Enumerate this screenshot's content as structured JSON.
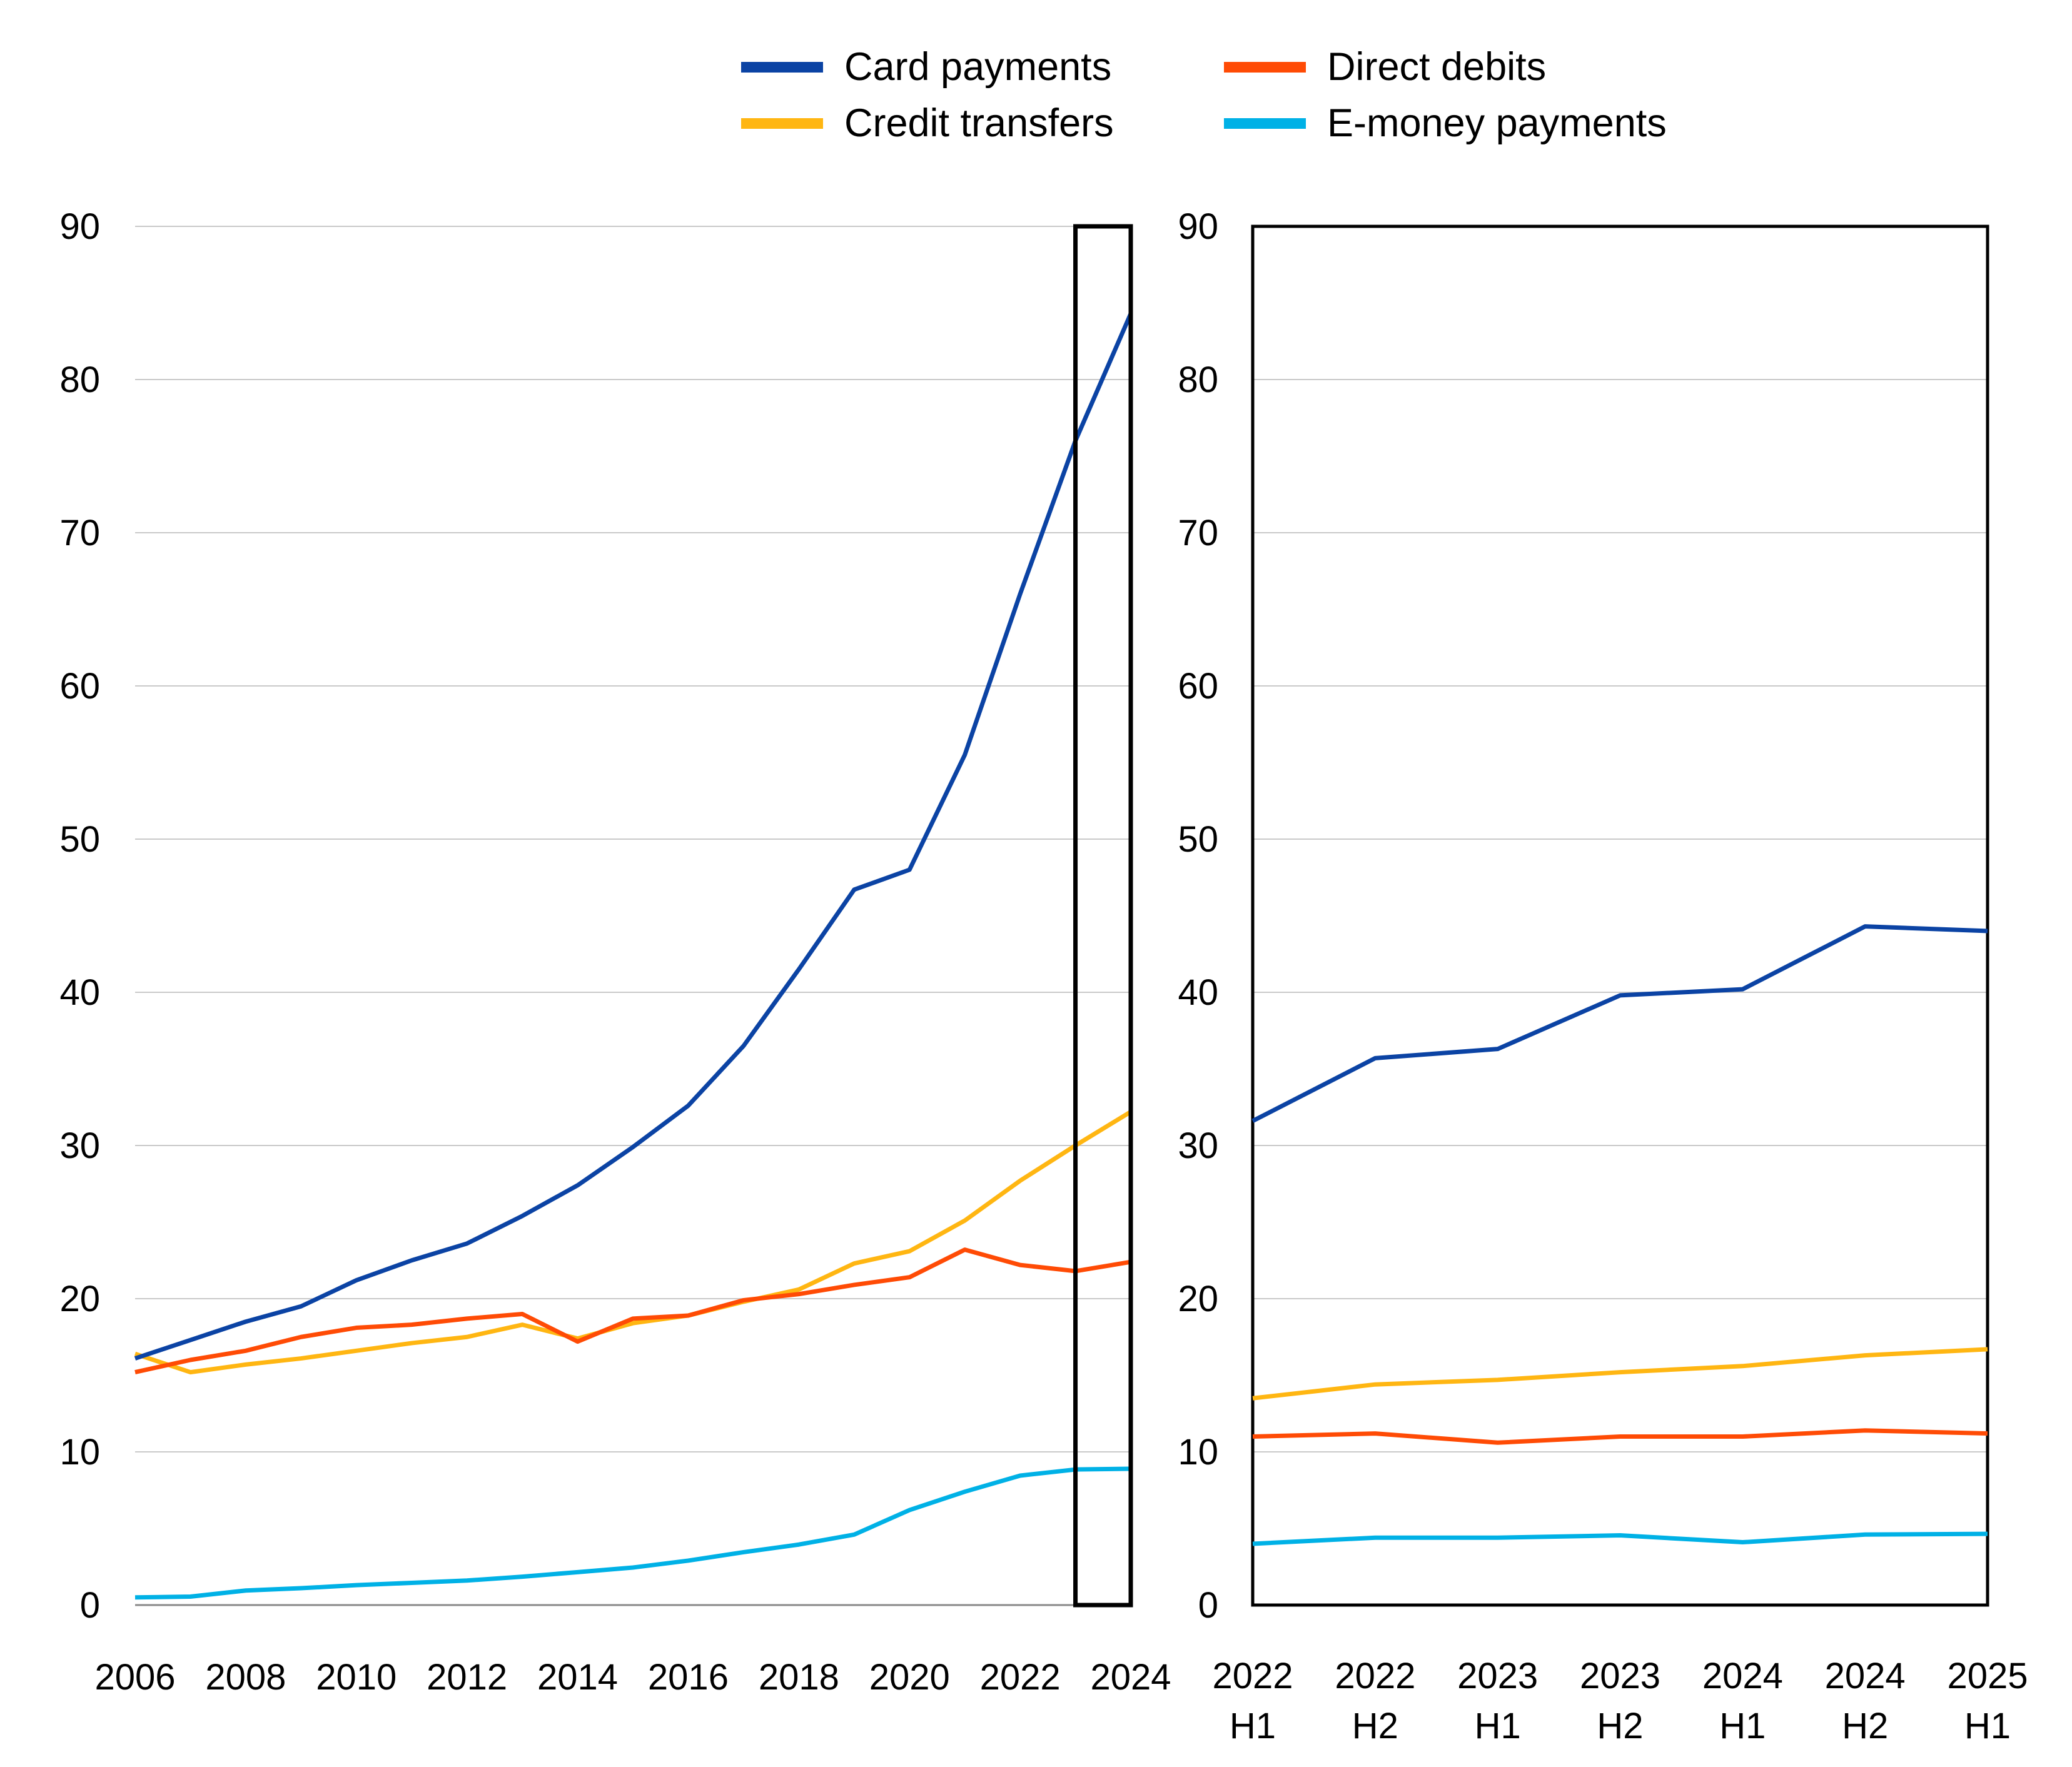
{
  "legend": {
    "items": [
      {
        "label": "Card payments",
        "color": "#0b43a4"
      },
      {
        "label": "Credit transfers",
        "color": "#ffb612"
      },
      {
        "label": "Direct debits",
        "color": "#ff4b05"
      },
      {
        "label": "E-money payments",
        "color": "#00b1e6"
      }
    ]
  },
  "chart_data": [
    {
      "id": "annual-panel",
      "type": "line",
      "title": "",
      "xlabel": "",
      "ylabel": "",
      "ylim": [
        0,
        90
      ],
      "y_ticks": [
        0,
        10,
        20,
        30,
        40,
        50,
        60,
        70,
        80,
        90
      ],
      "grid": true,
      "x": [
        2006,
        2007,
        2008,
        2009,
        2010,
        2011,
        2012,
        2013,
        2014,
        2015,
        2016,
        2017,
        2018,
        2019,
        2020,
        2021,
        2022,
        2023,
        2024
      ],
      "x_tick_labels": [
        "2006",
        "2008",
        "2010",
        "2012",
        "2014",
        "2016",
        "2018",
        "2020",
        "2022",
        "2024"
      ],
      "highlight_box": {
        "from": 2023,
        "to": 2024,
        "y_from": 0,
        "y_to": 90
      },
      "series": [
        {
          "name": "Card payments",
          "color": "#0b43a4",
          "values": [
            16.1,
            17.3,
            18.5,
            19.5,
            21.2,
            22.5,
            23.6,
            25.4,
            27.4,
            29.9,
            32.6,
            36.5,
            41.5,
            46.7,
            48.0,
            55.5,
            66.0,
            76.0,
            84.3
          ]
        },
        {
          "name": "Credit transfers",
          "color": "#ffb612",
          "values": [
            16.4,
            15.2,
            15.7,
            16.1,
            16.6,
            17.1,
            17.5,
            18.3,
            17.4,
            18.4,
            18.9,
            19.8,
            20.6,
            22.3,
            23.1,
            25.1,
            27.7,
            30.0,
            32.2
          ]
        },
        {
          "name": "Direct debits",
          "color": "#ff4b05",
          "values": [
            15.2,
            16.0,
            16.6,
            17.5,
            18.1,
            18.3,
            18.7,
            19.0,
            17.2,
            18.7,
            18.9,
            19.9,
            20.3,
            20.9,
            21.4,
            23.2,
            22.2,
            21.8,
            22.4
          ]
        },
        {
          "name": "E-money payments",
          "color": "#00b1e6",
          "values": [
            0.5,
            0.55,
            0.95,
            1.1,
            1.3,
            1.45,
            1.6,
            1.85,
            2.15,
            2.45,
            2.9,
            3.45,
            3.95,
            4.6,
            6.2,
            7.4,
            8.45,
            8.85,
            8.9
          ]
        }
      ]
    },
    {
      "id": "half-yearly-panel",
      "type": "line",
      "title": "",
      "xlabel": "",
      "ylabel": "",
      "ylim": [
        0,
        90
      ],
      "y_ticks": [
        0,
        10,
        20,
        30,
        40,
        50,
        60,
        70,
        80,
        90
      ],
      "grid": true,
      "x_tick_labels": [
        [
          "2022",
          "H1"
        ],
        [
          "2022",
          "H2"
        ],
        [
          "2023",
          "H1"
        ],
        [
          "2023",
          "H2"
        ],
        [
          "2024",
          "H1"
        ],
        [
          "2024",
          "H2"
        ],
        [
          "2025",
          "H1"
        ]
      ],
      "series": [
        {
          "name": "Card payments",
          "color": "#0b43a4",
          "values": [
            31.6,
            35.7,
            36.3,
            39.8,
            40.2,
            44.3,
            44.0
          ]
        },
        {
          "name": "Credit transfers",
          "color": "#ffb612",
          "values": [
            13.5,
            14.4,
            14.7,
            15.2,
            15.6,
            16.3,
            16.7
          ]
        },
        {
          "name": "Direct debits",
          "color": "#ff4b05",
          "values": [
            11.0,
            11.2,
            10.6,
            11.0,
            11.0,
            11.4,
            11.2
          ]
        },
        {
          "name": "E-money payments",
          "color": "#00b1e6",
          "values": [
            4.0,
            4.4,
            4.4,
            4.55,
            4.1,
            4.6,
            4.65
          ]
        }
      ]
    }
  ]
}
